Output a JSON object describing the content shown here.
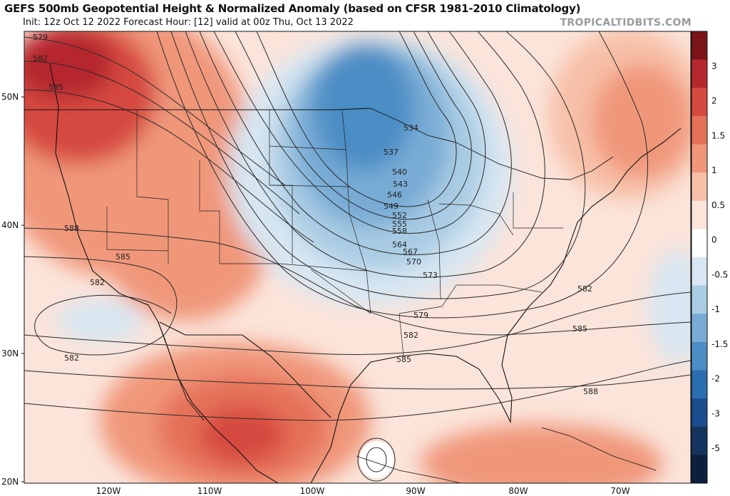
{
  "header": {
    "title": "GEFS 500mb Geopotential Height & Normalized Anomaly (based on CFSR 1981-2010 Climatology)",
    "subtitle": "Init: 12z Oct 12 2022   Forecast Hour: [12]   valid at 00z Thu, Oct 13 2022",
    "watermark": "TROPICALTIDBITS.COM"
  },
  "axes": {
    "lat_labels": [
      "50N",
      "40N",
      "30N",
      "20N"
    ],
    "lon_labels": [
      "120W",
      "110W",
      "100W",
      "90W",
      "80W",
      "70W"
    ]
  },
  "colorbar": {
    "tick_labels": [
      "3",
      "2",
      "1.5",
      "1",
      "0.5",
      "0",
      "-0.5",
      "-1",
      "-1.5",
      "-2",
      "-3",
      "-5"
    ],
    "colors": [
      "#7a1418",
      "#b5282d",
      "#d6493f",
      "#e57158",
      "#f0977a",
      "#f7c0a7",
      "#fbe4da",
      "#ffffff",
      "#d7e6f2",
      "#a9cce3",
      "#78acd5",
      "#4b8dc5",
      "#2a6db0",
      "#1b4d8e",
      "#14345e",
      "#0c1f3d"
    ]
  },
  "contours": {
    "labels": [
      "579",
      "582",
      "585",
      "588",
      "585",
      "582",
      "582",
      "534",
      "537",
      "540",
      "543",
      "546",
      "549",
      "552",
      "555",
      "558",
      "564",
      "567",
      "570",
      "573",
      "579",
      "582",
      "585",
      "582",
      "585",
      "588"
    ]
  }
}
